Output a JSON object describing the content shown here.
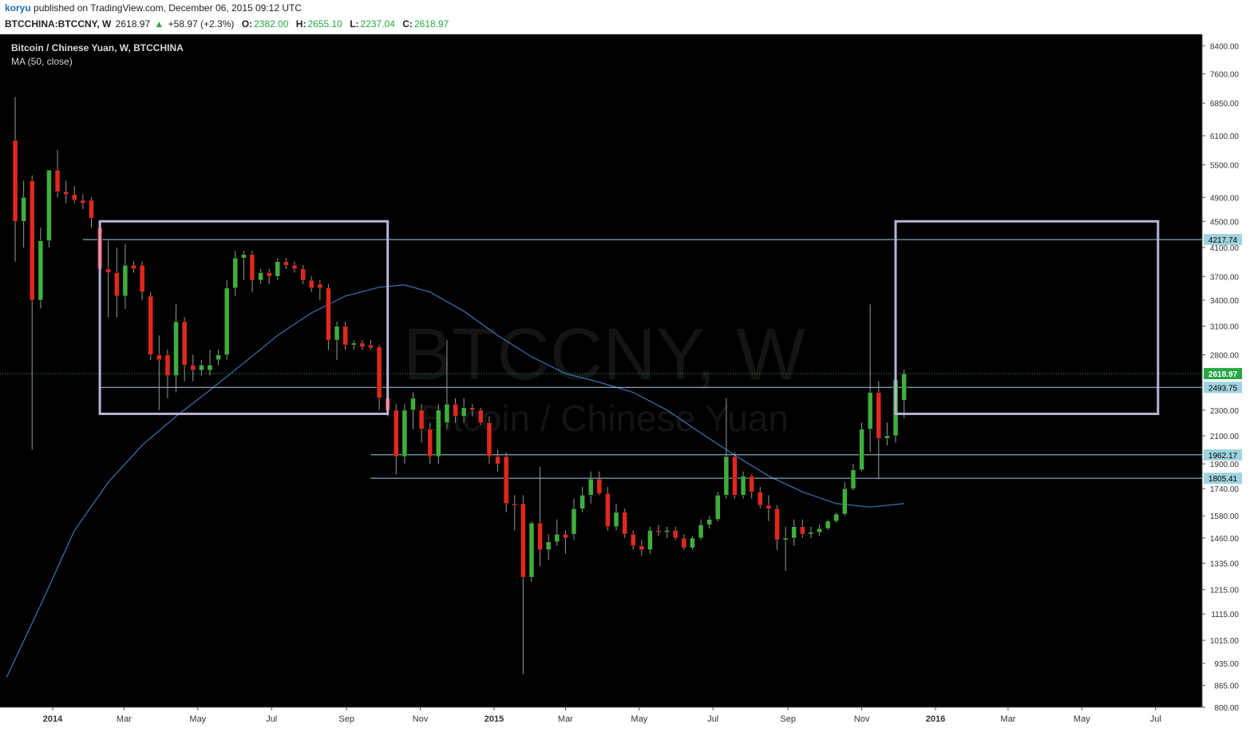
{
  "header": {
    "author": "koryu",
    "published_text": "published on TradingView.com, December 06, 2015 09:12 UTC"
  },
  "ohlc_bar": {
    "symbol": "BTCCHINA:BTCCNY, W",
    "last": "2618.97",
    "change": "+58.97 (+2.3%)",
    "open_label": "O:",
    "open": "2382.00",
    "high_label": "H:",
    "high": "2655.10",
    "low_label": "L:",
    "low": "2237.04",
    "close_label": "C:",
    "close": "2618.97"
  },
  "colors": {
    "background": "#000000",
    "up": "#3fae3f",
    "down": "#e0281e",
    "ma_line": "#3a77b8",
    "hline": "#9fd3df",
    "box": "#b9b3d6",
    "price_tag": "#9fd3df",
    "last_tag": "#27a844"
  },
  "chart_data": {
    "type": "candlestick",
    "title": "Bitcoin / Chinese Yuan, W, BTCCHINA",
    "indicator_label": "MA (50, close)",
    "watermark": "BTCCNY, W",
    "watermark_sub": "Bitcoin / Chinese Yuan",
    "y_scale": "log",
    "ylim": [
      800,
      8600
    ],
    "y_ticks": [
      "8400.00",
      "7600.00",
      "6850.00",
      "6100.00",
      "5500.00",
      "4900.00",
      "4500.00",
      "4100.00",
      "3700.00",
      "3400.00",
      "3100.00",
      "2800.00",
      "2300.00",
      "2100.00",
      "1900.00",
      "1740.00",
      "1580.00",
      "1460.00",
      "1335.00",
      "1215.00",
      "1115.00",
      "1015.00",
      "935.00",
      "865.00",
      "800.00"
    ],
    "x_ticks": [
      {
        "label": "2014",
        "date": "2014-01-01",
        "bold": true
      },
      {
        "label": "Mar",
        "date": "2014-03-01"
      },
      {
        "label": "May",
        "date": "2014-05-01"
      },
      {
        "label": "Jul",
        "date": "2014-07-01"
      },
      {
        "label": "Sep",
        "date": "2014-09-01"
      },
      {
        "label": "Nov",
        "date": "2014-11-01"
      },
      {
        "label": "2015",
        "date": "2015-01-01",
        "bold": true
      },
      {
        "label": "Mar",
        "date": "2015-03-01"
      },
      {
        "label": "May",
        "date": "2015-05-01"
      },
      {
        "label": "Jul",
        "date": "2015-07-01"
      },
      {
        "label": "Sep",
        "date": "2015-09-01"
      },
      {
        "label": "Nov",
        "date": "2015-11-01"
      },
      {
        "label": "2016",
        "date": "2016-01-01",
        "bold": true
      },
      {
        "label": "Mar",
        "date": "2016-03-01"
      },
      {
        "label": "May",
        "date": "2016-05-01"
      },
      {
        "label": "Jul",
        "date": "2016-07-01"
      }
    ],
    "candles": [
      {
        "date": "2013-12-01",
        "o": 6000,
        "h": 7000,
        "l": 3900,
        "c": 4500
      },
      {
        "date": "2013-12-08",
        "o": 4500,
        "h": 5200,
        "l": 4100,
        "c": 4900
      },
      {
        "date": "2013-12-15",
        "o": 5200,
        "h": 5300,
        "l": 2000,
        "c": 3400
      },
      {
        "date": "2013-12-22",
        "o": 3400,
        "h": 4400,
        "l": 3300,
        "c": 4200
      },
      {
        "date": "2013-12-29",
        "o": 4200,
        "h": 5400,
        "l": 4100,
        "c": 5400
      },
      {
        "date": "2014-01-05",
        "o": 5400,
        "h": 5800,
        "l": 4900,
        "c": 5000
      },
      {
        "date": "2014-01-12",
        "o": 5000,
        "h": 5200,
        "l": 4800,
        "c": 4950
      },
      {
        "date": "2014-01-19",
        "o": 4950,
        "h": 5100,
        "l": 4800,
        "c": 4850
      },
      {
        "date": "2014-01-26",
        "o": 4850,
        "h": 4950,
        "l": 4700,
        "c": 4800
      },
      {
        "date": "2014-02-02",
        "o": 4850,
        "h": 4900,
        "l": 4400,
        "c": 4550
      },
      {
        "date": "2014-02-09",
        "o": 4400,
        "h": 4500,
        "l": 3500,
        "c": 3800
      },
      {
        "date": "2014-02-16",
        "o": 3800,
        "h": 4200,
        "l": 3200,
        "c": 3750
      },
      {
        "date": "2014-02-23",
        "o": 3750,
        "h": 4100,
        "l": 3200,
        "c": 3450
      },
      {
        "date": "2014-03-02",
        "o": 3450,
        "h": 4150,
        "l": 3300,
        "c": 3850
      },
      {
        "date": "2014-03-09",
        "o": 3850,
        "h": 3900,
        "l": 3750,
        "c": 3800
      },
      {
        "date": "2014-03-16",
        "o": 3850,
        "h": 3900,
        "l": 3400,
        "c": 3500
      },
      {
        "date": "2014-03-23",
        "o": 3450,
        "h": 3500,
        "l": 2750,
        "c": 2800
      },
      {
        "date": "2014-03-30",
        "o": 2800,
        "h": 3000,
        "l": 2300,
        "c": 2750
      },
      {
        "date": "2014-04-06",
        "o": 2800,
        "h": 2850,
        "l": 2400,
        "c": 2600
      },
      {
        "date": "2014-04-13",
        "o": 2600,
        "h": 3350,
        "l": 2450,
        "c": 3150
      },
      {
        "date": "2014-04-20",
        "o": 3150,
        "h": 3200,
        "l": 2550,
        "c": 2700
      },
      {
        "date": "2014-04-27",
        "o": 2700,
        "h": 2800,
        "l": 2550,
        "c": 2650
      },
      {
        "date": "2014-05-04",
        "o": 2650,
        "h": 2750,
        "l": 2600,
        "c": 2700
      },
      {
        "date": "2014-05-11",
        "o": 2650,
        "h": 2850,
        "l": 2600,
        "c": 2700
      },
      {
        "date": "2014-05-18",
        "o": 2750,
        "h": 2850,
        "l": 2700,
        "c": 2800
      },
      {
        "date": "2014-05-25",
        "o": 2800,
        "h": 3650,
        "l": 2750,
        "c": 3550
      },
      {
        "date": "2014-06-01",
        "o": 3550,
        "h": 4050,
        "l": 3450,
        "c": 3950
      },
      {
        "date": "2014-06-08",
        "o": 3950,
        "h": 4050,
        "l": 3650,
        "c": 4000
      },
      {
        "date": "2014-06-15",
        "o": 4000,
        "h": 4050,
        "l": 3500,
        "c": 3650
      },
      {
        "date": "2014-06-22",
        "o": 3650,
        "h": 3800,
        "l": 3600,
        "c": 3750
      },
      {
        "date": "2014-06-29",
        "o": 3750,
        "h": 3800,
        "l": 3600,
        "c": 3700
      },
      {
        "date": "2014-07-06",
        "o": 3700,
        "h": 3950,
        "l": 3650,
        "c": 3900
      },
      {
        "date": "2014-07-13",
        "o": 3900,
        "h": 3950,
        "l": 3800,
        "c": 3850
      },
      {
        "date": "2014-07-20",
        "o": 3850,
        "h": 3900,
        "l": 3750,
        "c": 3800
      },
      {
        "date": "2014-07-27",
        "o": 3800,
        "h": 3850,
        "l": 3600,
        "c": 3650
      },
      {
        "date": "2014-08-03",
        "o": 3650,
        "h": 3700,
        "l": 3500,
        "c": 3550
      },
      {
        "date": "2014-08-10",
        "o": 3600,
        "h": 3650,
        "l": 3400,
        "c": 3550
      },
      {
        "date": "2014-08-17",
        "o": 3550,
        "h": 3600,
        "l": 2850,
        "c": 2950
      },
      {
        "date": "2014-08-24",
        "o": 2950,
        "h": 3150,
        "l": 2750,
        "c": 3100
      },
      {
        "date": "2014-08-31",
        "o": 3100,
        "h": 3150,
        "l": 2850,
        "c": 2900
      },
      {
        "date": "2014-09-07",
        "o": 2900,
        "h": 2950,
        "l": 2850,
        "c": 2920
      },
      {
        "date": "2014-09-14",
        "o": 2920,
        "h": 2950,
        "l": 2850,
        "c": 2880
      },
      {
        "date": "2014-09-21",
        "o": 2900,
        "h": 2950,
        "l": 2850,
        "c": 2870
      },
      {
        "date": "2014-09-28",
        "o": 2880,
        "h": 2900,
        "l": 2300,
        "c": 2400
      },
      {
        "date": "2014-10-05",
        "o": 2400,
        "h": 2450,
        "l": 2250,
        "c": 2300
      },
      {
        "date": "2014-10-12",
        "o": 2300,
        "h": 2350,
        "l": 1830,
        "c": 1950
      },
      {
        "date": "2014-10-19",
        "o": 1950,
        "h": 2350,
        "l": 1900,
        "c": 2300
      },
      {
        "date": "2014-10-26",
        "o": 2300,
        "h": 2450,
        "l": 2150,
        "c": 2400
      },
      {
        "date": "2014-11-02",
        "o": 2300,
        "h": 2350,
        "l": 2050,
        "c": 2150
      },
      {
        "date": "2014-11-09",
        "o": 2150,
        "h": 2200,
        "l": 1900,
        "c": 1950
      },
      {
        "date": "2014-11-16",
        "o": 1950,
        "h": 2350,
        "l": 1900,
        "c": 2300
      },
      {
        "date": "2014-11-23",
        "o": 2200,
        "h": 2950,
        "l": 2150,
        "c": 2350
      },
      {
        "date": "2014-11-30",
        "o": 2350,
        "h": 2400,
        "l": 2200,
        "c": 2250
      },
      {
        "date": "2014-12-07",
        "o": 2250,
        "h": 2400,
        "l": 2200,
        "c": 2320
      },
      {
        "date": "2014-12-14",
        "o": 2320,
        "h": 2350,
        "l": 2250,
        "c": 2300
      },
      {
        "date": "2014-12-21",
        "o": 2300,
        "h": 2320,
        "l": 2180,
        "c": 2200
      },
      {
        "date": "2014-12-28",
        "o": 2200,
        "h": 2250,
        "l": 1900,
        "c": 1950
      },
      {
        "date": "2015-01-04",
        "o": 1950,
        "h": 2000,
        "l": 1850,
        "c": 1900
      },
      {
        "date": "2015-01-11",
        "o": 1950,
        "h": 1980,
        "l": 1600,
        "c": 1650
      },
      {
        "date": "2015-01-18",
        "o": 1650,
        "h": 1700,
        "l": 1500,
        "c": 1640
      },
      {
        "date": "2015-01-25",
        "o": 1650,
        "h": 1700,
        "l": 900,
        "c": 1270
      },
      {
        "date": "2015-02-01",
        "o": 1270,
        "h": 1550,
        "l": 1250,
        "c": 1540
      },
      {
        "date": "2015-02-08",
        "o": 1540,
        "h": 1880,
        "l": 1320,
        "c": 1400
      },
      {
        "date": "2015-02-15",
        "o": 1400,
        "h": 1480,
        "l": 1350,
        "c": 1440
      },
      {
        "date": "2015-02-22",
        "o": 1440,
        "h": 1560,
        "l": 1420,
        "c": 1480
      },
      {
        "date": "2015-03-01",
        "o": 1480,
        "h": 1500,
        "l": 1380,
        "c": 1460
      },
      {
        "date": "2015-03-08",
        "o": 1480,
        "h": 1680,
        "l": 1450,
        "c": 1620
      },
      {
        "date": "2015-03-15",
        "o": 1620,
        "h": 1750,
        "l": 1600,
        "c": 1700
      },
      {
        "date": "2015-03-22",
        "o": 1700,
        "h": 1850,
        "l": 1650,
        "c": 1800
      },
      {
        "date": "2015-03-29",
        "o": 1800,
        "h": 1850,
        "l": 1700,
        "c": 1710
      },
      {
        "date": "2015-04-05",
        "o": 1710,
        "h": 1750,
        "l": 1500,
        "c": 1520
      },
      {
        "date": "2015-04-12",
        "o": 1520,
        "h": 1650,
        "l": 1500,
        "c": 1600
      },
      {
        "date": "2015-04-19",
        "o": 1600,
        "h": 1620,
        "l": 1460,
        "c": 1480
      },
      {
        "date": "2015-04-26",
        "o": 1480,
        "h": 1500,
        "l": 1400,
        "c": 1420
      },
      {
        "date": "2015-05-03",
        "o": 1420,
        "h": 1450,
        "l": 1370,
        "c": 1400
      },
      {
        "date": "2015-05-10",
        "o": 1400,
        "h": 1520,
        "l": 1380,
        "c": 1500
      },
      {
        "date": "2015-05-17",
        "o": 1500,
        "h": 1530,
        "l": 1470,
        "c": 1490
      },
      {
        "date": "2015-05-24",
        "o": 1490,
        "h": 1520,
        "l": 1460,
        "c": 1500
      },
      {
        "date": "2015-05-31",
        "o": 1500,
        "h": 1520,
        "l": 1450,
        "c": 1460
      },
      {
        "date": "2015-06-07",
        "o": 1460,
        "h": 1480,
        "l": 1400,
        "c": 1410
      },
      {
        "date": "2015-06-14",
        "o": 1410,
        "h": 1470,
        "l": 1400,
        "c": 1460
      },
      {
        "date": "2015-06-21",
        "o": 1460,
        "h": 1560,
        "l": 1450,
        "c": 1530
      },
      {
        "date": "2015-06-28",
        "o": 1530,
        "h": 1580,
        "l": 1510,
        "c": 1560
      },
      {
        "date": "2015-07-05",
        "o": 1560,
        "h": 1720,
        "l": 1550,
        "c": 1700
      },
      {
        "date": "2015-07-12",
        "o": 1700,
        "h": 2400,
        "l": 1680,
        "c": 1950
      },
      {
        "date": "2015-07-19",
        "o": 1950,
        "h": 1980,
        "l": 1680,
        "c": 1700
      },
      {
        "date": "2015-07-26",
        "o": 1700,
        "h": 1850,
        "l": 1680,
        "c": 1820
      },
      {
        "date": "2015-08-02",
        "o": 1820,
        "h": 1830,
        "l": 1680,
        "c": 1720
      },
      {
        "date": "2015-08-09",
        "o": 1720,
        "h": 1750,
        "l": 1620,
        "c": 1640
      },
      {
        "date": "2015-08-16",
        "o": 1640,
        "h": 1700,
        "l": 1550,
        "c": 1620
      },
      {
        "date": "2015-08-23",
        "o": 1620,
        "h": 1640,
        "l": 1400,
        "c": 1450
      },
      {
        "date": "2015-08-30",
        "o": 1450,
        "h": 1520,
        "l": 1300,
        "c": 1460
      },
      {
        "date": "2015-09-06",
        "o": 1460,
        "h": 1560,
        "l": 1420,
        "c": 1520
      },
      {
        "date": "2015-09-13",
        "o": 1520,
        "h": 1560,
        "l": 1460,
        "c": 1480
      },
      {
        "date": "2015-09-20",
        "o": 1480,
        "h": 1520,
        "l": 1460,
        "c": 1490
      },
      {
        "date": "2015-09-27",
        "o": 1490,
        "h": 1530,
        "l": 1470,
        "c": 1510
      },
      {
        "date": "2015-10-04",
        "o": 1510,
        "h": 1560,
        "l": 1500,
        "c": 1550
      },
      {
        "date": "2015-10-11",
        "o": 1550,
        "h": 1600,
        "l": 1540,
        "c": 1590
      },
      {
        "date": "2015-10-18",
        "o": 1590,
        "h": 1780,
        "l": 1580,
        "c": 1740
      },
      {
        "date": "2015-10-25",
        "o": 1740,
        "h": 1900,
        "l": 1730,
        "c": 1860
      },
      {
        "date": "2015-11-01",
        "o": 1860,
        "h": 2200,
        "l": 1850,
        "c": 2150
      },
      {
        "date": "2015-11-08",
        "o": 2150,
        "h": 3350,
        "l": 1980,
        "c": 2450
      },
      {
        "date": "2015-11-15",
        "o": 2450,
        "h": 2550,
        "l": 1800,
        "c": 2080
      },
      {
        "date": "2015-11-22",
        "o": 2080,
        "h": 2200,
        "l": 2030,
        "c": 2100
      },
      {
        "date": "2015-11-29",
        "o": 2100,
        "h": 2560,
        "l": 2050,
        "c": 2560
      },
      {
        "date": "2015-12-06",
        "o": 2382,
        "h": 2655.1,
        "l": 2237.04,
        "c": 2618.97
      }
    ],
    "ma_line": [
      {
        "date": "2013-11-24",
        "v": 890
      },
      {
        "date": "2013-12-22",
        "v": 1150
      },
      {
        "date": "2014-01-19",
        "v": 1500
      },
      {
        "date": "2014-02-16",
        "v": 1780
      },
      {
        "date": "2014-03-16",
        "v": 2030
      },
      {
        "date": "2014-04-13",
        "v": 2250
      },
      {
        "date": "2014-05-11",
        "v": 2470
      },
      {
        "date": "2014-06-08",
        "v": 2720
      },
      {
        "date": "2014-07-06",
        "v": 3000
      },
      {
        "date": "2014-08-03",
        "v": 3250
      },
      {
        "date": "2014-08-31",
        "v": 3450
      },
      {
        "date": "2014-09-28",
        "v": 3560
      },
      {
        "date": "2014-10-19",
        "v": 3590
      },
      {
        "date": "2014-11-09",
        "v": 3500
      },
      {
        "date": "2014-12-07",
        "v": 3270
      },
      {
        "date": "2015-01-04",
        "v": 3000
      },
      {
        "date": "2015-02-01",
        "v": 2780
      },
      {
        "date": "2015-03-01",
        "v": 2620
      },
      {
        "date": "2015-03-29",
        "v": 2540
      },
      {
        "date": "2015-04-26",
        "v": 2450
      },
      {
        "date": "2015-05-24",
        "v": 2300
      },
      {
        "date": "2015-06-21",
        "v": 2120
      },
      {
        "date": "2015-07-19",
        "v": 1960
      },
      {
        "date": "2015-08-16",
        "v": 1820
      },
      {
        "date": "2015-09-13",
        "v": 1720
      },
      {
        "date": "2015-10-11",
        "v": 1650
      },
      {
        "date": "2015-11-08",
        "v": 1630
      },
      {
        "date": "2015-12-06",
        "v": 1650
      }
    ],
    "horizontal_lines": [
      {
        "value": 4217.74,
        "label": "4217.74",
        "from": "2014-01-26"
      },
      {
        "value": 2493.75,
        "label": "2493.75",
        "from": "2014-02-09"
      },
      {
        "value": 1962.17,
        "label": "1962.17",
        "from": "2014-09-21"
      },
      {
        "value": 1805.41,
        "label": "1805.41",
        "from": "2014-09-21"
      }
    ],
    "last_price_label": "2618.97",
    "boxes": [
      {
        "from": "2014-02-09",
        "to": "2014-10-05",
        "top": 4500,
        "bottom": 2270
      },
      {
        "from": "2015-11-29",
        "to": "2016-07-03",
        "top": 4500,
        "bottom": 2270
      }
    ]
  }
}
